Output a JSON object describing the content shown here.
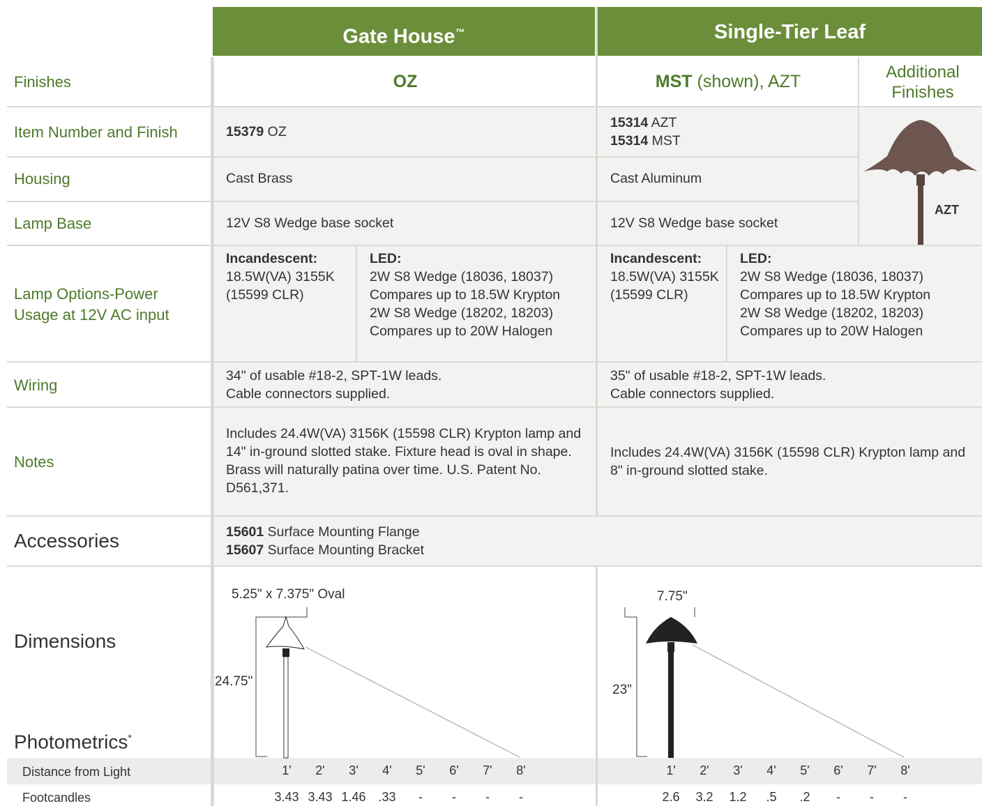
{
  "header": {
    "products": [
      {
        "name": "Gate House",
        "mark": "™"
      },
      {
        "name": "Single-Tier Leaf"
      }
    ]
  },
  "rows": {
    "finishes": {
      "label": "Finishes",
      "gate": "OZ",
      "leaf_bold": "MST",
      "leaf_rest": "(shown), AZT",
      "additional": "Additional Finishes",
      "additional_code": "AZT"
    },
    "item": {
      "label": "Item Number and Finish",
      "gate": [
        {
          "num": "15379",
          "finish": "OZ"
        }
      ],
      "leaf": [
        {
          "num": "15314",
          "finish": "AZT"
        },
        {
          "num": "15314",
          "finish": "MST"
        }
      ]
    },
    "housing": {
      "label": "Housing",
      "gate": "Cast Brass",
      "leaf": "Cast Aluminum"
    },
    "lamp_base": {
      "label": "Lamp Base",
      "gate": "12V S8 Wedge base socket",
      "leaf": "12V S8 Wedge base socket"
    },
    "lamp_options": {
      "label": "Lamp Options-Power Usage at 12V AC input",
      "gate": {
        "incandescent_title": "Incandescent:",
        "incandescent": [
          "18.5W(VA) 3155K",
          "(15599 CLR)"
        ],
        "led_title": "LED:",
        "led": [
          "2W S8 Wedge (18036, 18037)",
          "Compares up to 18.5W Krypton",
          "2W S8 Wedge (18202, 18203)",
          "Compares up to 20W Halogen"
        ]
      },
      "leaf": {
        "incandescent_title": "Incandescent:",
        "incandescent": [
          "18.5W(VA) 3155K",
          "(15599 CLR)"
        ],
        "led_title": "LED:",
        "led": [
          "2W S8 Wedge (18036, 18037)",
          "Compares up to 18.5W Krypton",
          "2W S8 Wedge (18202, 18203)",
          "Compares up to 20W Halogen"
        ]
      }
    },
    "wiring": {
      "label": "Wiring",
      "gate": [
        "34\" of usable #18-2, SPT-1W leads.",
        "Cable connectors supplied."
      ],
      "leaf": [
        "35\" of usable #18-2, SPT-1W leads.",
        "Cable connectors supplied."
      ]
    },
    "notes": {
      "label": "Notes",
      "gate": "Includes 24.4W(VA) 3156K (15598 CLR) Krypton lamp and 14\" in-ground slotted stake. Fixture head is oval in shape. Brass will naturally patina over time. U.S. Patent No. D561,371.",
      "leaf": "Includes 24.4W(VA) 3156K (15598 CLR) Krypton lamp and 8\" in-ground slotted stake."
    },
    "accessories": {
      "label": "Accessories",
      "items": [
        {
          "num": "15601",
          "name": "Surface Mounting Flange"
        },
        {
          "num": "15607",
          "name": "Surface Mounting Bracket"
        }
      ]
    }
  },
  "dimensions": {
    "label": "Dimensions",
    "gate": {
      "width": "5.25\" x 7.375\" Oval",
      "height": "24.75\""
    },
    "leaf": {
      "width": "7.75\"",
      "height": "23\""
    }
  },
  "photometrics": {
    "title": "Photometrics",
    "mark": "*",
    "distance_label": "Distance from Light",
    "footcandles_label": "Footcandles",
    "gate": {
      "distances": [
        "1'",
        "2'",
        "3'",
        "4'",
        "5'",
        "6'",
        "7'",
        "8'"
      ],
      "footcandles": [
        "3.43",
        "3.43",
        "1.46",
        ".33",
        "-",
        "-",
        "-",
        "-"
      ]
    },
    "leaf": {
      "distances": [
        "1'",
        "2'",
        "3'",
        "4'",
        "5'",
        "6'",
        "7'",
        "8'"
      ],
      "footcandles": [
        "2.6",
        "3.2",
        "1.2",
        ".5",
        ".2",
        "-",
        "-",
        "-"
      ]
    }
  }
}
